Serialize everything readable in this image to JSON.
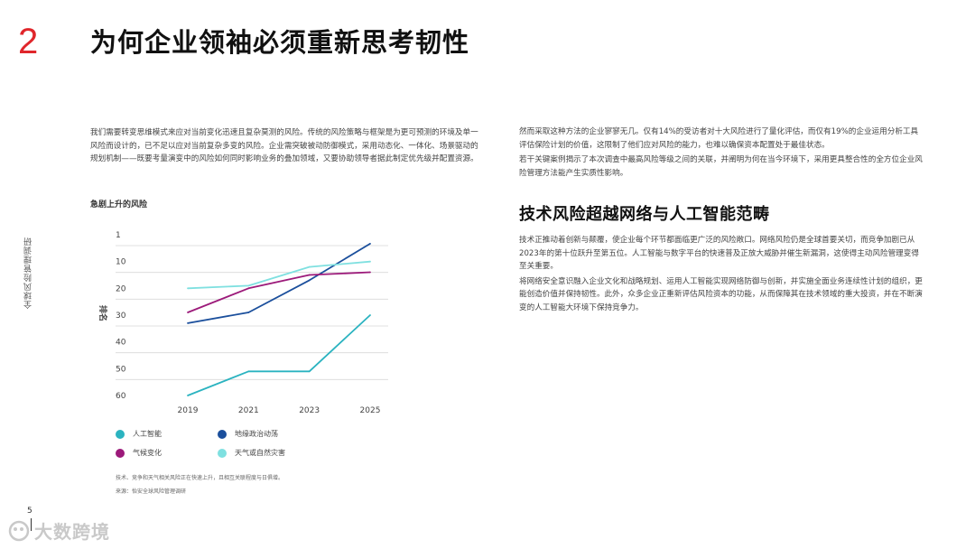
{
  "header": {
    "section_number": "2",
    "title": "为何企业领袖必须重新思考韧性",
    "accent_color": "#e0262b"
  },
  "side_label": "全球风险管理调研",
  "left_column": {
    "paragraph": "我们需要转变思维模式来应对当前变化迅速且复杂莫测的风险。传统的风险策略与框架是为更可预测的环境及单一风险而设计的，已不足以应对当前复杂多变的风险。企业需突破被动防御模式，采用动态化、一体化、场景驱动的规划机制——既要考量演变中的风险如何同时影响业务的叠加领域，又要协助领导者据此制定优先级并配置资源。"
  },
  "right_column": {
    "paragraph1": "然而采取这种方法的企业寥寥无几。仅有14%的受访者对十大风险进行了量化评估，而仅有19%的企业运用分析工具评估保险计划的价值，这限制了他们应对风险的能力，也难以确保资本配置处于最佳状态。",
    "paragraph2": "若干关键案例揭示了本次调查中最高风险等级之间的关联，并阐明为何在当今环境下，采用更具整合性的全方位企业风险管理方法能产生实质性影响。",
    "section_title": "技术风险超越网络与人工智能范畴",
    "paragraph3": "技术正推动着创新与颠覆，使企业每个环节都面临更广泛的风险敞口。网络风险仍是全球首要关切，而竞争加剧已从2023年的第十位跃升至第五位。人工智能与数字平台的快速普及正放大威胁并催生新漏洞，这使得主动风险管理变得至关重要。",
    "paragraph4": "将网络安全意识融入企业文化和战略规划、运用人工智能实现网络防御与创新，并实施全面业务连续性计划的组织，更能创造价值并保持韧性。此外，众多企业正重新评估风险资本的功能，从而保障其在技术领域的重大投资，并在不断演变的人工智能大环境下保持竞争力。"
  },
  "chart_data": {
    "type": "line",
    "title": "急剧上升的风险",
    "ylabel": "排名",
    "xlabel": "",
    "x": [
      "2019",
      "2021",
      "2023",
      "2025"
    ],
    "y_ticks": [
      "1",
      "10",
      "20",
      "30",
      "40",
      "50",
      "60"
    ],
    "ylim": [
      60,
      1
    ],
    "y_inverted": true,
    "grid": true,
    "series": [
      {
        "name": "人工智能",
        "color": "#2bb3c0",
        "values": [
          60,
          51,
          51,
          30
        ]
      },
      {
        "name": "地缘政治动荡",
        "color": "#1b4f9c",
        "values": [
          33,
          29,
          17,
          4
        ]
      },
      {
        "name": "气候变化",
        "color": "#9c1a7a",
        "values": [
          29,
          20,
          15,
          14
        ]
      },
      {
        "name": "天气或自然灾害",
        "color": "#7fe0e0",
        "values": [
          20,
          19,
          12,
          10
        ]
      }
    ],
    "legend_position": "bottom"
  },
  "footnotes": {
    "note": "技术、竞争和天气相关风险正在快速上升，且相互关联程度与日俱增。",
    "source": "来源：怡安全球风险管理调研"
  },
  "page_number": "5",
  "watermark": "大数跨境"
}
